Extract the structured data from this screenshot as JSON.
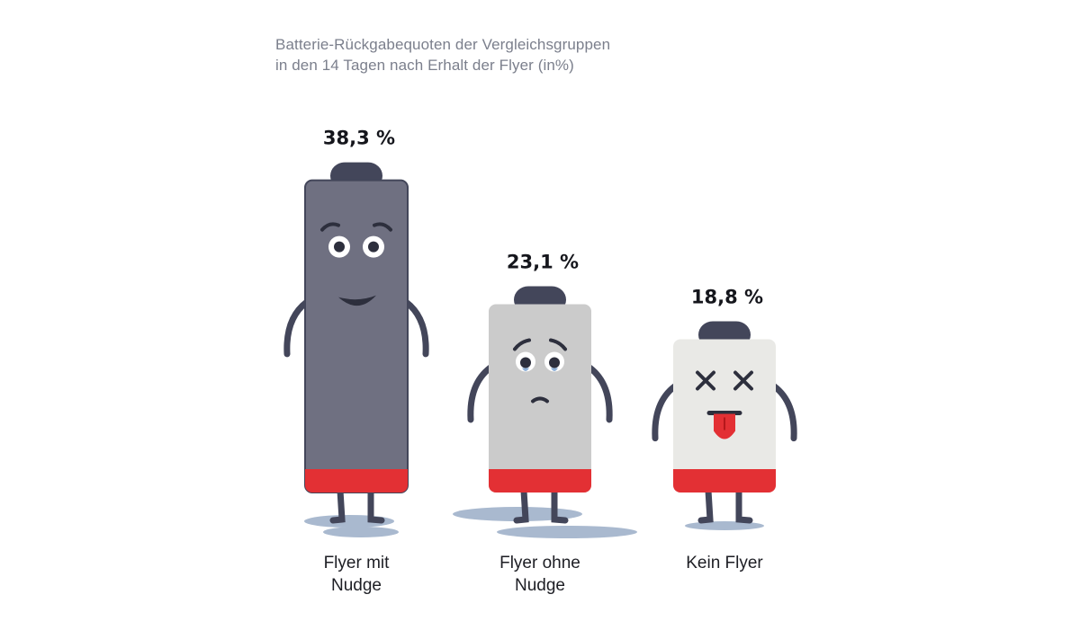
{
  "chart_data": {
    "type": "bar",
    "title": "Batterie-Rückgabequoten der Vergleichsgruppen",
    "subtitle": "in den 14 Tagen nach Erhalt der Flyer (in%)",
    "categories": [
      "Flyer mit Nudge",
      "Flyer ohne Nudge",
      "Kein Flyer"
    ],
    "category_lines": [
      [
        "Flyer mit",
        "Nudge"
      ],
      [
        "Flyer ohne",
        "Nudge"
      ],
      [
        "Kein Flyer"
      ]
    ],
    "values": [
      38.3,
      23.1,
      18.8
    ],
    "value_labels": [
      "38,3 %",
      "23,1 %",
      "18,8 %"
    ],
    "unit": "%",
    "faces": [
      "happy",
      "sad",
      "dead"
    ],
    "colors": {
      "body": [
        "#6f7081",
        "#cbcbcb",
        "#e9e9e6"
      ],
      "outline": "#43465a",
      "cap": "#43465a",
      "charge": "#e33034",
      "puddle": "#a9b9cf",
      "title": "#7b7f8c"
    }
  }
}
